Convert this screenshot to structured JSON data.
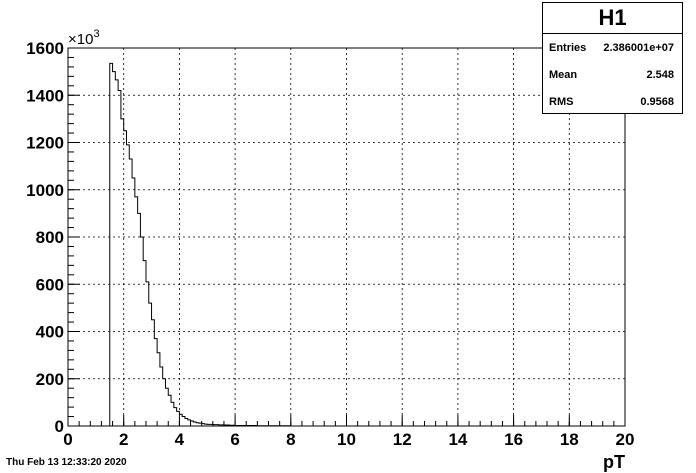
{
  "chart_data": {
    "type": "histogram",
    "xlabel": "pT",
    "ylabel": "",
    "xlim": [
      0,
      20
    ],
    "ylim": [
      0,
      1600
    ],
    "y_scale_label": "×10",
    "y_scale_exponent": "3",
    "x_ticks": [
      "0",
      "2",
      "4",
      "6",
      "8",
      "10",
      "12",
      "14",
      "16",
      "18",
      "20"
    ],
    "y_ticks": [
      "0",
      "200",
      "400",
      "600",
      "800",
      "1000",
      "1200",
      "1400",
      "1600"
    ],
    "grid": true,
    "bin_width": 0.1,
    "bins_x_start": [
      1.5,
      1.6,
      1.7,
      1.8,
      1.9,
      2.0,
      2.1,
      2.2,
      2.3,
      2.4,
      2.5,
      2.6,
      2.7,
      2.8,
      2.9,
      3.0,
      3.1,
      3.2,
      3.3,
      3.4,
      3.5,
      3.6,
      3.7,
      3.8,
      3.9,
      4.0,
      4.1,
      4.2,
      4.3,
      4.4,
      4.5,
      4.6,
      4.7,
      4.8,
      4.9,
      5.0,
      5.2,
      5.4,
      5.6,
      5.8,
      6.0,
      6.4,
      6.8,
      7.2,
      7.6,
      8.0
    ],
    "bins_value": [
      1535,
      1500,
      1465,
      1420,
      1300,
      1250,
      1190,
      1130,
      1050,
      970,
      900,
      800,
      700,
      610,
      520,
      450,
      370,
      310,
      250,
      200,
      160,
      130,
      100,
      78,
      62,
      50,
      40,
      32,
      26,
      21,
      17,
      14,
      12,
      10,
      8,
      7,
      6,
      5,
      4,
      3,
      2,
      2,
      1,
      1,
      1,
      0
    ],
    "bins_end": 8.2
  },
  "stats_box": {
    "title": "H1",
    "rows": [
      {
        "label": "Entries",
        "value": "2.386001e+07"
      },
      {
        "label": "Mean",
        "value": "2.548"
      },
      {
        "label": "RMS",
        "value": "0.9568"
      }
    ]
  },
  "timestamp": "Thu Feb 13 12:33:20 2020"
}
